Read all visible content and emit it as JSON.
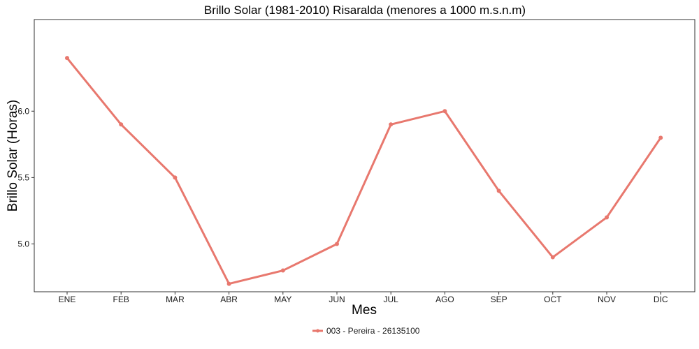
{
  "chart_data": {
    "type": "line",
    "title": "Brillo Solar (1981-2010) Risaralda (menores a 1000 m.s.n.m)",
    "xlabel": "Mes",
    "ylabel": "Brillo Solar (Horas)",
    "categories": [
      "ENE",
      "FEB",
      "MAR",
      "ABR",
      "MAY",
      "JUN",
      "JUL",
      "AGO",
      "SEP",
      "OCT",
      "NOV",
      "DIC"
    ],
    "ylim": [
      4.64,
      6.69
    ],
    "yticks": [
      5.0,
      5.5,
      6.0
    ],
    "ytick_labels": [
      "5.0",
      "5.5",
      "6.0"
    ],
    "grid": false,
    "legend_position": "bottom",
    "series": [
      {
        "name": "003 - Pereira - 26135100",
        "color": "#e8786e",
        "values": [
          6.4,
          5.9,
          5.5,
          4.7,
          4.8,
          5.0,
          5.9,
          6.0,
          5.4,
          4.9,
          5.2,
          5.8
        ]
      }
    ]
  }
}
